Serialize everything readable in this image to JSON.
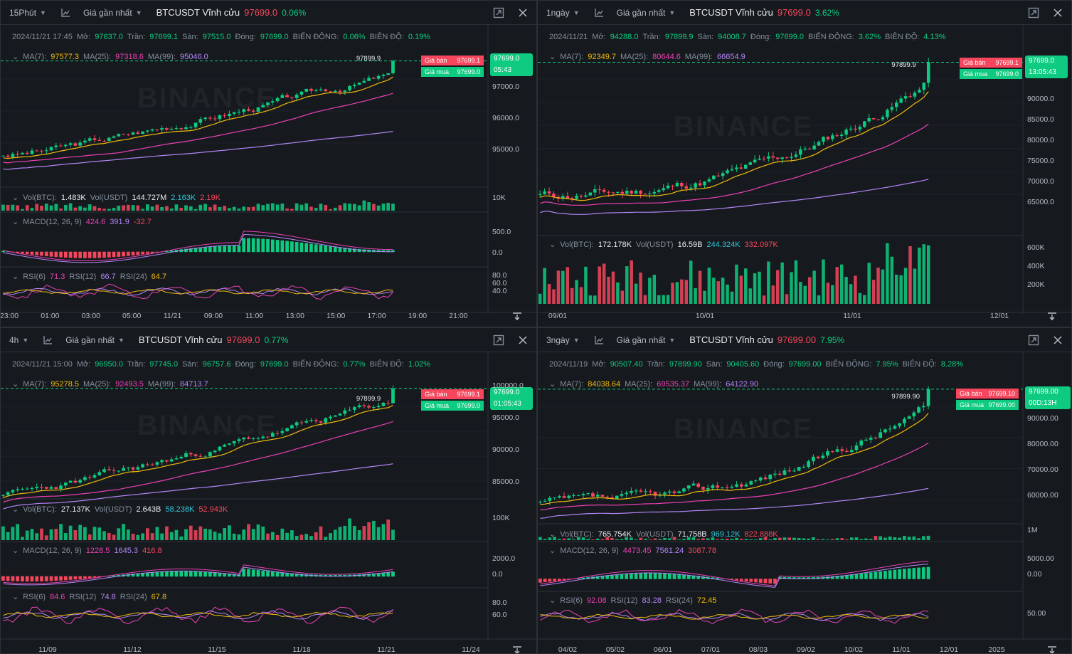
{
  "colors": {
    "up": "#0ecb81",
    "down": "#f6465d",
    "ma7": "#f0b90b",
    "ma25": "#eb40b5",
    "ma99": "#b385f8",
    "bg": "#161a1e"
  },
  "watermark": "BINANCE",
  "labels": {
    "date_sep": "",
    "open": "Mở:",
    "high": "Trần:",
    "low": "Sàn:",
    "close": "Đóng:",
    "change": "BIẾN ĐỘNG:",
    "amplitude": "BIÊN ĐỘ:",
    "ask": "Giá bán",
    "bid": "Giá mua"
  },
  "panels": [
    {
      "interval": "15Phút",
      "price_type": "Giá gần nhất",
      "symbol": "BTCUSDT Vĩnh cửu",
      "price": "97699.0",
      "change_pct": "0.06%",
      "ohlc": {
        "date": "2024/11/21 17:45",
        "open": "97637.0",
        "high": "97699.1",
        "low": "97515.0",
        "close": "97699.0",
        "change": "0.06%",
        "amplitude": "0.19%"
      },
      "ma": {
        "ma7_label": "MA(7):",
        "ma7": "97577.3",
        "ma25_label": "MA(25):",
        "ma25": "97318.6",
        "ma99_label": "MA(99):",
        "ma99": "95046.0"
      },
      "vol": {
        "l1": "Vol(BTC):",
        "v1": "1.483K",
        "l2": "Vol(USDT)",
        "v2": "144.727M",
        "v3": "2.163K",
        "v4": "2.19K"
      },
      "macd": {
        "label": "MACD(12, 26, 9)",
        "v1": "424.6",
        "v2": "391.9",
        "v3": "-32.7"
      },
      "rsi": {
        "l1": "RSI(6)",
        "v1": "71.3",
        "l2": "RSI(12)",
        "v2": "66.7",
        "l3": "RSI(24)",
        "v3": "64.7"
      },
      "high_marker": "97899.9",
      "ask": "97699.1",
      "bid": "97699.0",
      "last_price": "97699.0",
      "countdown": "05:43",
      "y_ticks": [
        "97000.0",
        "96000.0",
        "95000.0"
      ],
      "vol_ticks": [
        "10K"
      ],
      "macd_ticks": [
        "500.0",
        "0.0"
      ],
      "rsi_ticks": [
        "80.0",
        "60.0",
        "40.0"
      ],
      "x_ticks": [
        "23:00",
        "01:00",
        "03:00",
        "05:00",
        "11/21",
        "09:00",
        "11:00",
        "13:00",
        "15:00",
        "17:00",
        "19:00",
        "21:00"
      ]
    },
    {
      "interval": "1ngày",
      "price_type": "Giá gần nhất",
      "symbol": "BTCUSDT Vĩnh cửu",
      "price": "97699.0",
      "change_pct": "3.62%",
      "ohlc": {
        "date": "2024/11/21",
        "open": "94288.0",
        "high": "97899.9",
        "low": "94008.7",
        "close": "97699.0",
        "change": "3.62%",
        "amplitude": "4.13%"
      },
      "ma": {
        "ma7_label": "MA(7):",
        "ma7": "92349.7",
        "ma25_label": "MA(25):",
        "ma25": "80644.6",
        "ma99_label": "MA(99):",
        "ma99": "66654.9"
      },
      "vol": {
        "l1": "Vol(BTC):",
        "v1": "172.178K",
        "l2": "Vol(USDT)",
        "v2": "16.59B",
        "v3": "244.324K",
        "v4": "332.097K"
      },
      "high_marker": "97899.9",
      "ask": "97699.1",
      "bid": "97699.0",
      "last_price": "97699.0",
      "countdown": "13:05:43",
      "y_ticks": [
        "90000.0",
        "85000.0",
        "80000.0",
        "75000.0",
        "70000.0",
        "65000.0"
      ],
      "vol_ticks": [
        "600K",
        "400K",
        "200K"
      ],
      "x_ticks": [
        "09/01",
        "10/01",
        "11/01",
        "12/01"
      ]
    },
    {
      "interval": "4h",
      "price_type": "Giá gần nhất",
      "symbol": "BTCUSDT Vĩnh cửu",
      "price": "97699.0",
      "change_pct": "0.77%",
      "ohlc": {
        "date": "2024/11/21 15:00",
        "open": "96950.0",
        "high": "97745.0",
        "low": "96757.6",
        "close": "97699.0",
        "change": "0.77%",
        "amplitude": "1.02%"
      },
      "ma": {
        "ma7_label": "MA(7):",
        "ma7": "95278.5",
        "ma25_label": "MA(25):",
        "ma25": "92493.5",
        "ma99_label": "MA(99):",
        "ma99": "84713.7"
      },
      "vol": {
        "l1": "Vol(BTC):",
        "v1": "27.137K",
        "l2": "Vol(USDT)",
        "v2": "2.643B",
        "v3": "58.238K",
        "v4": "52.943K"
      },
      "macd": {
        "label": "MACD(12, 26, 9)",
        "v1": "1228.5",
        "v2": "1645.3",
        "v3": "416.8"
      },
      "rsi": {
        "l1": "RSI(6)",
        "v1": "84.6",
        "l2": "RSI(12)",
        "v2": "74.8",
        "l3": "RSI(24)",
        "v3": "67.8"
      },
      "high_marker": "97899.9",
      "ask": "97699.1",
      "bid": "97699.0",
      "last_price": "97699.0",
      "countdown": "01:05:43",
      "y_ticks": [
        "100000.0",
        "95000.0",
        "90000.0",
        "85000.0"
      ],
      "vol_ticks": [
        "100K"
      ],
      "macd_ticks": [
        "2000.0",
        "0.0"
      ],
      "rsi_ticks": [
        "80.0",
        "60.0"
      ],
      "x_ticks": [
        "11/09",
        "11/12",
        "11/15",
        "11/18",
        "11/21",
        "11/24"
      ]
    },
    {
      "interval": "3ngày",
      "price_type": "Giá gần nhất",
      "symbol": "BTCUSDT Vĩnh cửu",
      "price": "97699.00",
      "change_pct": "7.95%",
      "ohlc": {
        "date": "2024/11/19",
        "open": "90507.40",
        "high": "97899.90",
        "low": "90405.60",
        "close": "97699.00",
        "change": "7.95%",
        "amplitude": "8.28%"
      },
      "ma": {
        "ma7_label": "MA(7):",
        "ma7": "84038.64",
        "ma25_label": "MA(25):",
        "ma25": "69535.37",
        "ma99_label": "MA(99):",
        "ma99": "64122.90"
      },
      "vol": {
        "l1": "Vol(BTC):",
        "v1": "765.754K",
        "l2": "Vol(USDT)",
        "v2": "71.758B",
        "v3": "969.12K",
        "v4": "822.888K"
      },
      "macd": {
        "label": "MACD(12, 26, 9)",
        "v1": "4473.45",
        "v2": "7561.24",
        "v3": "3087.78"
      },
      "rsi": {
        "l1": "RSI(6)",
        "v1": "92.08",
        "l2": "RSI(12)",
        "v2": "83.28",
        "l3": "RSI(24)",
        "v3": "72.45"
      },
      "high_marker": "97899.90",
      "ask": "97699.10",
      "bid": "97699.00",
      "last_price": "97699.00",
      "countdown": "00D:13H",
      "y_ticks": [
        "90000.00",
        "80000.00",
        "70000.00",
        "60000.00"
      ],
      "vol_ticks": [
        "1M"
      ],
      "macd_ticks": [
        "5000.00",
        "0.00"
      ],
      "rsi_ticks": [
        "50.00"
      ],
      "x_ticks": [
        "04/02",
        "05/02",
        "06/01",
        "07/01",
        "08/03",
        "09/02",
        "10/02",
        "11/01",
        "12/01",
        "2025"
      ]
    }
  ]
}
